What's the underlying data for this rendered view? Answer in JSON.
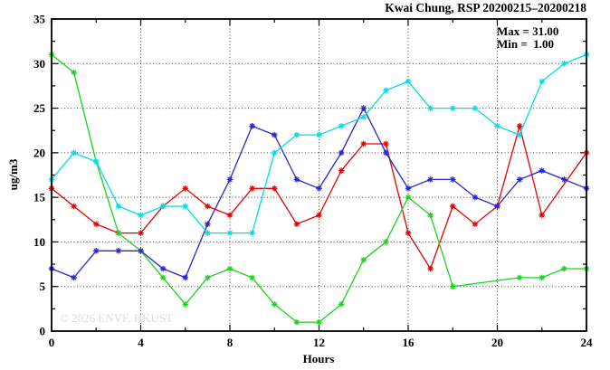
{
  "title": "Kwai Chung, RSP 20200215–20200218",
  "annotation": {
    "max_label": "Max = 31.00",
    "min_label": "Min =  1.00"
  },
  "watermark": "© 2026 ENVF, HKUST",
  "chart_data": {
    "type": "line",
    "title": "Kwai Chung, RSP 20200215–20200218",
    "xlabel": "Hours",
    "ylabel": "ug/m3",
    "xlim": [
      0,
      24
    ],
    "ylim": [
      0,
      35
    ],
    "xticks_major": [
      0,
      4,
      8,
      12,
      16,
      20,
      24
    ],
    "xticks_minor": [
      2,
      6,
      10,
      14,
      18,
      22
    ],
    "yticks_major": [
      0,
      5,
      10,
      15,
      20,
      25,
      30,
      35
    ],
    "yticks_minor": [
      2.5,
      7.5,
      12.5,
      17.5,
      22.5,
      27.5,
      32.5
    ],
    "grid": true,
    "legend": "none",
    "marker": "star",
    "x": [
      0,
      1,
      2,
      3,
      4,
      5,
      6,
      7,
      8,
      9,
      10,
      11,
      12,
      13,
      14,
      15,
      16,
      17,
      18,
      19,
      20,
      21,
      22,
      23,
      24
    ],
    "series": [
      {
        "name": "series-red",
        "color": "#e60000",
        "values": [
          16,
          14,
          12,
          11,
          11,
          14,
          16,
          14,
          13,
          16,
          16,
          12,
          13,
          18,
          21,
          21,
          11,
          7,
          14,
          12,
          14,
          23,
          13,
          null,
          20
        ]
      },
      {
        "name": "series-green",
        "color": "#1fd11f",
        "values": [
          31,
          29,
          19,
          11,
          9,
          6,
          3,
          6,
          7,
          6,
          3,
          1,
          1,
          3,
          8,
          10,
          15,
          13,
          5,
          null,
          null,
          6,
          6,
          7,
          7
        ]
      },
      {
        "name": "series-blue",
        "color": "#2727cc",
        "values": [
          7,
          6,
          9,
          9,
          9,
          7,
          6,
          12,
          17,
          23,
          22,
          17,
          16,
          20,
          25,
          20,
          16,
          17,
          17,
          15,
          14,
          17,
          18,
          17,
          16
        ]
      },
      {
        "name": "series-cyan",
        "color": "#00dde8",
        "values": [
          17,
          20,
          19,
          14,
          13,
          14,
          14,
          11,
          11,
          11,
          20,
          22,
          22,
          23,
          24,
          27,
          28,
          25,
          25,
          25,
          23,
          22,
          28,
          30,
          31
        ]
      }
    ],
    "stats_shown": {
      "max": 31.0,
      "min": 1.0
    }
  }
}
